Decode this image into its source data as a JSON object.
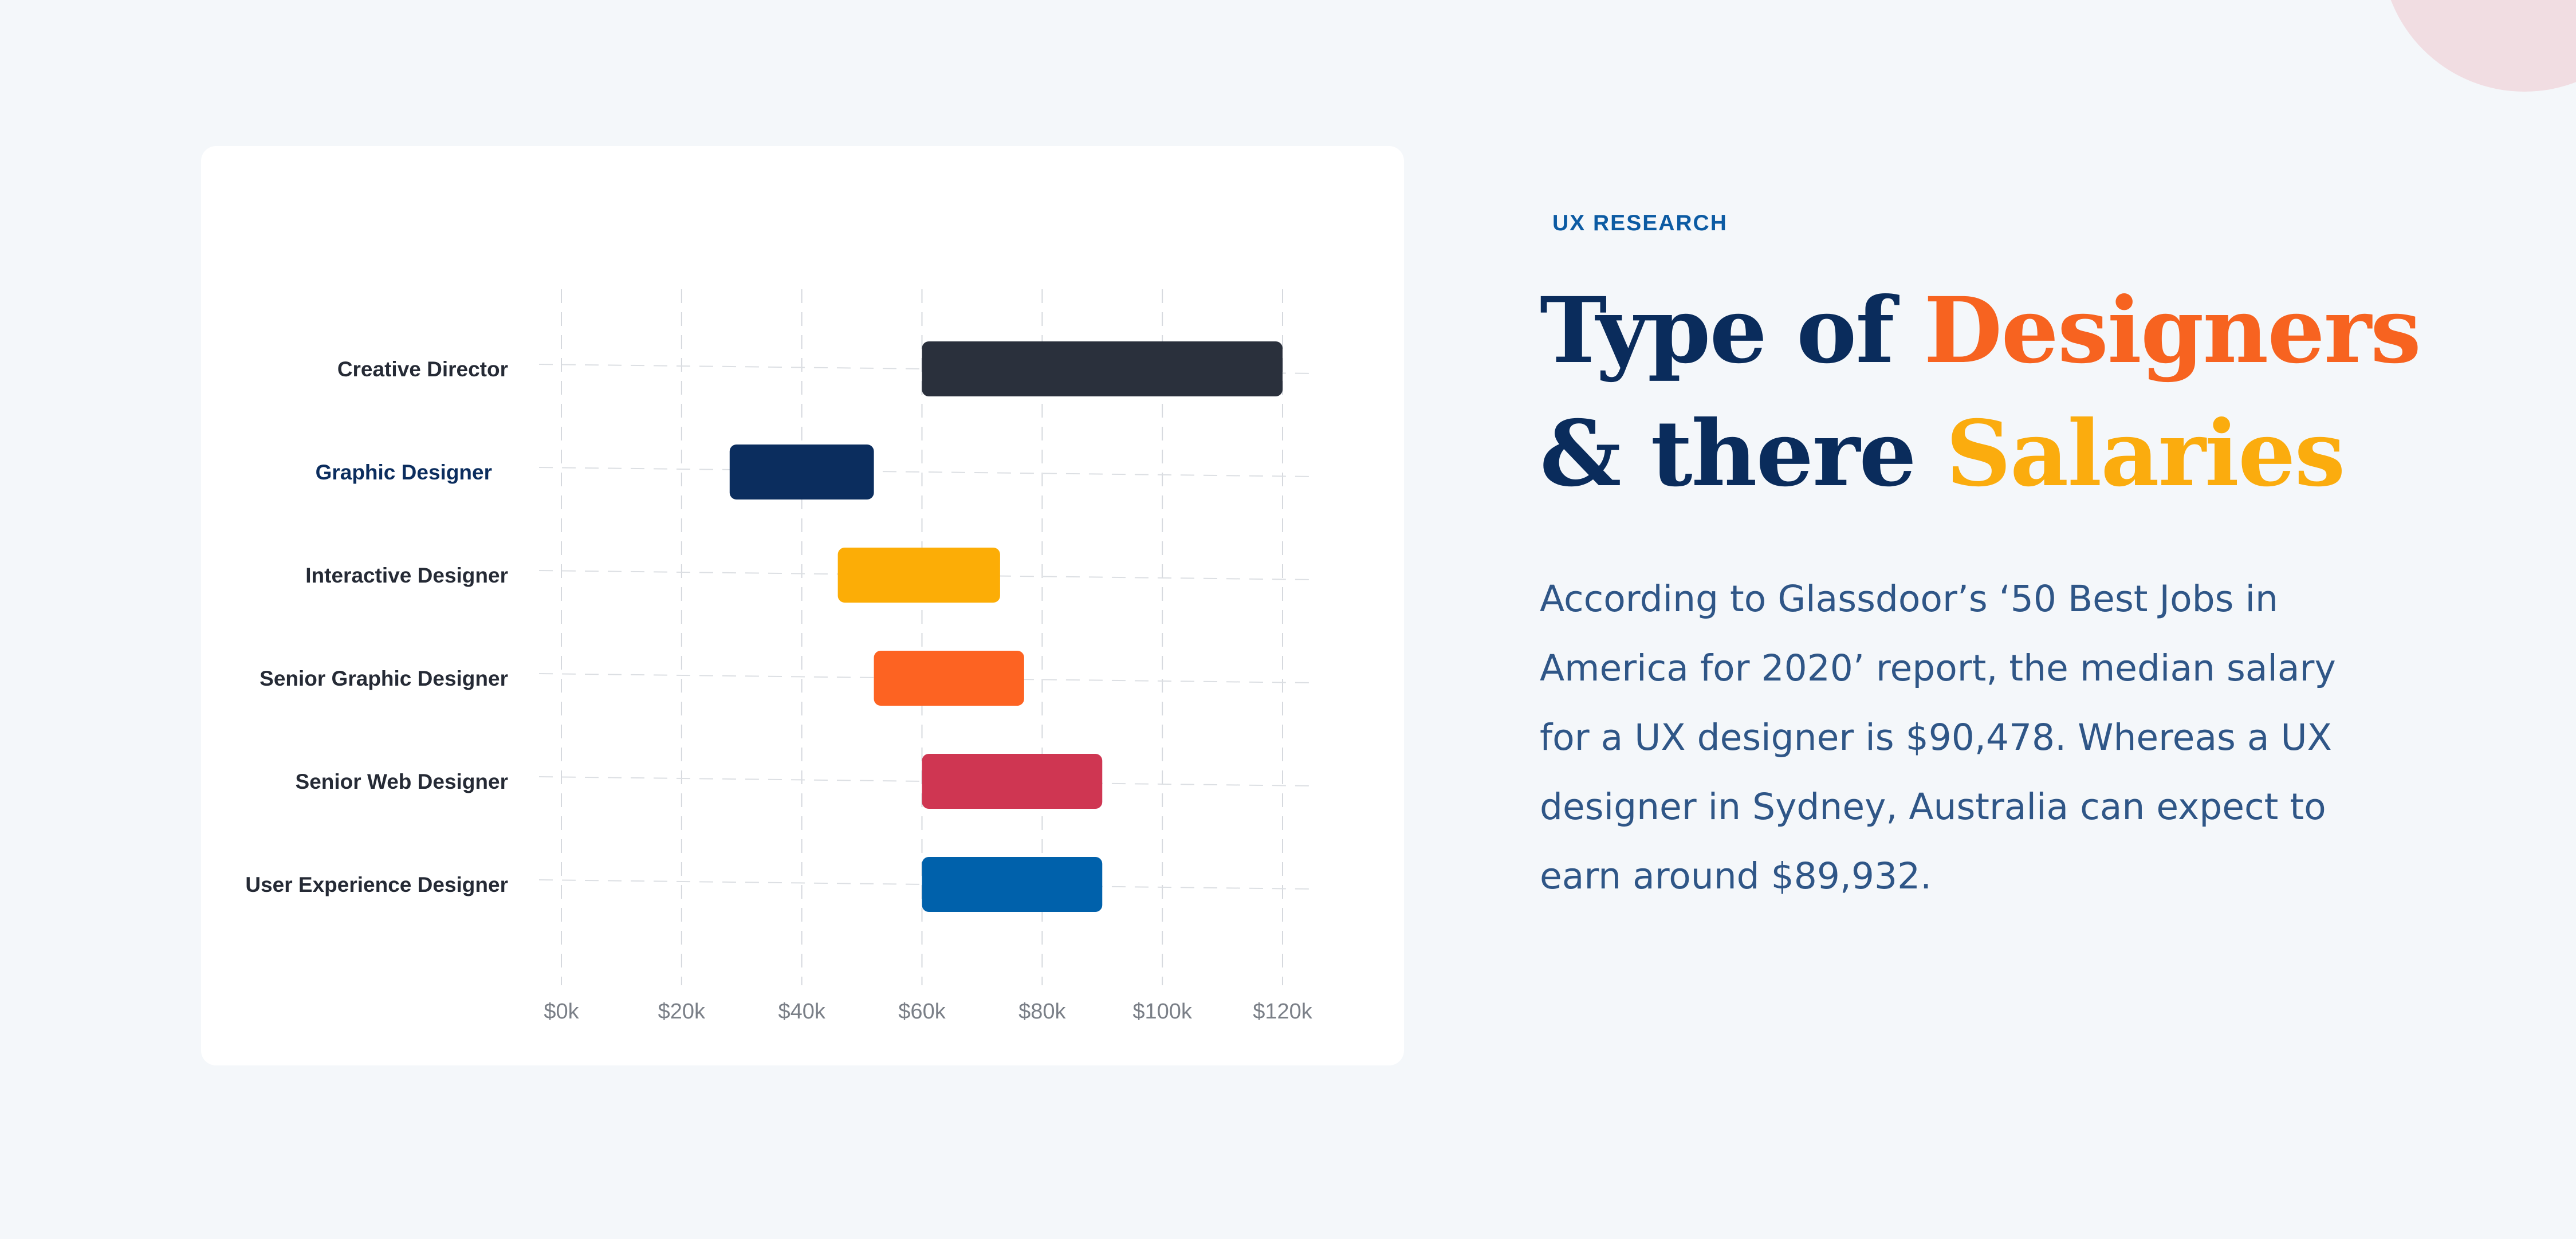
{
  "colors": {
    "page_bg": "#f4f7fa",
    "card_bg": "#ffffff",
    "navy": "#0a2c5c",
    "eyebrow_blue": "#0c5ba3",
    "orange": "#f76320",
    "yellow": "#fbac0e",
    "body_text": "#2f5687"
  },
  "header": {
    "eyebrow": "UX RESEARCH",
    "title_part1": "Type of ",
    "title_highlight1": "Designers",
    "title_part2": "& there ",
    "title_highlight2": "Salaries"
  },
  "body": {
    "paragraph": "According to Glassdoor’s ‘50 Best Jobs in America for 2020’ report, the median salary for a UX designer is $90,478. Whereas a UX designer in Sydney, Australia can expect to earn around $89,932."
  },
  "chart_data": {
    "type": "bar",
    "orientation": "horizontal-range",
    "title": "",
    "xlabel": "",
    "ylabel": "",
    "xlim": [
      0,
      120000
    ],
    "x_ticks": [
      0,
      20000,
      40000,
      60000,
      80000,
      100000,
      120000
    ],
    "x_tick_labels": [
      "$0k",
      "$20k",
      "$40k",
      "$60k",
      "$80k",
      "$100k",
      "$120k"
    ],
    "grid": true,
    "legend": "none",
    "categories": [
      "Creative Director",
      "Graphic Designer",
      "Interactive Designer",
      "Senior Graphic Designer",
      "Senior Web Designer",
      "User Experience Designer"
    ],
    "ranges": [
      {
        "category": "Creative Director",
        "min": 60000,
        "max": 120000,
        "color": "#2a303c"
      },
      {
        "category": "Graphic Designer",
        "min": 28000,
        "max": 52000,
        "color": "#0b2d5e"
      },
      {
        "category": "Interactive Designer",
        "min": 46000,
        "max": 73000,
        "color": "#fcad06"
      },
      {
        "category": "Senior Graphic Designer",
        "min": 52000,
        "max": 77000,
        "color": "#fd6322"
      },
      {
        "category": "Senior Web Designer",
        "min": 60000,
        "max": 90000,
        "color": "#cf3652"
      },
      {
        "category": "User Experience Designer",
        "min": 60000,
        "max": 90000,
        "color": "#0061ab"
      }
    ],
    "highlighted_category": "Graphic Designer"
  }
}
